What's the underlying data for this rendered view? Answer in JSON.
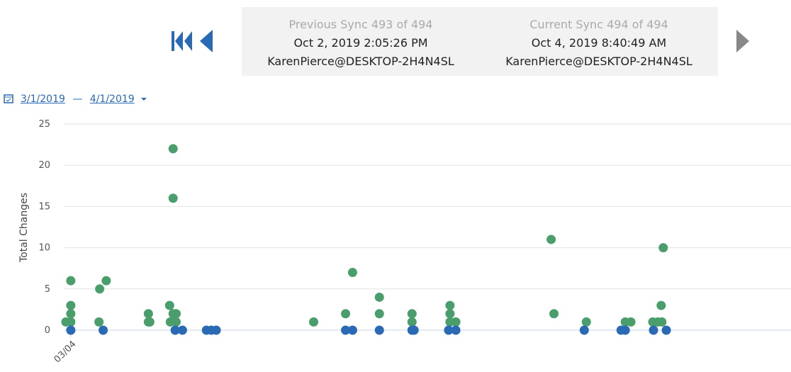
{
  "header": {
    "previous": {
      "title": "Previous Sync 493 of 494",
      "date": "Oct 2, 2019 2:05:26 PM",
      "user": "KarenPierce@DESKTOP-2H4N4SL"
    },
    "current": {
      "title": "Current Sync 494 of 494",
      "date": "Oct 4, 2019 8:40:49 AM",
      "user": "KarenPierce@DESKTOP-2H4N4SL"
    }
  },
  "date_range": {
    "start": "3/1/2019",
    "separator": "—",
    "end": "4/1/2019"
  },
  "chart_data": {
    "type": "scatter",
    "ylabel": "Total Changes",
    "ylim": [
      0,
      25
    ],
    "yticks": [
      0,
      5,
      10,
      15,
      20,
      25
    ],
    "grid": true,
    "xlim": [
      3.7,
      34.9
    ],
    "xticks": [
      {
        "value": 4,
        "label": "03/04"
      }
    ],
    "series": [
      {
        "color": "#4a9e6b",
        "x": [
          3.79,
          4,
          4,
          4,
          4,
          5.24,
          5.21,
          5.52,
          7.33,
          7.33,
          7.39,
          8.24,
          8.39,
          8.39,
          8.39,
          8.52,
          8.27,
          8.52,
          14.42,
          15.79,
          16.09,
          17.24,
          17.24,
          18.64,
          18.64,
          20.27,
          20.27,
          20.27,
          20.52,
          24.61,
          24.73,
          26.12,
          27.79,
          28.03,
          28.97,
          29.18,
          29.36,
          29.42,
          29.33
        ],
        "values": [
          1,
          6,
          3,
          2,
          1,
          5,
          1,
          6,
          2,
          1,
          1,
          3,
          22,
          16,
          2,
          2,
          1,
          1,
          1,
          2,
          7,
          4,
          2,
          2,
          1,
          3,
          2,
          1,
          1,
          11,
          2,
          1,
          1,
          1,
          1,
          1,
          1,
          10,
          3
        ]
      },
      {
        "color": "#2a6ab5",
        "x": [
          4,
          5.39,
          8.48,
          8.79,
          9.82,
          10.03,
          10.24,
          15.79,
          16.09,
          17.24,
          18.64,
          18.73,
          20.21,
          20.52,
          26.03,
          27.61,
          27.79,
          29,
          29.55
        ],
        "values": [
          0,
          0,
          0,
          0,
          0,
          0,
          0,
          0,
          0,
          0,
          0,
          0,
          0,
          0,
          0,
          0,
          0,
          0,
          0
        ]
      }
    ]
  }
}
